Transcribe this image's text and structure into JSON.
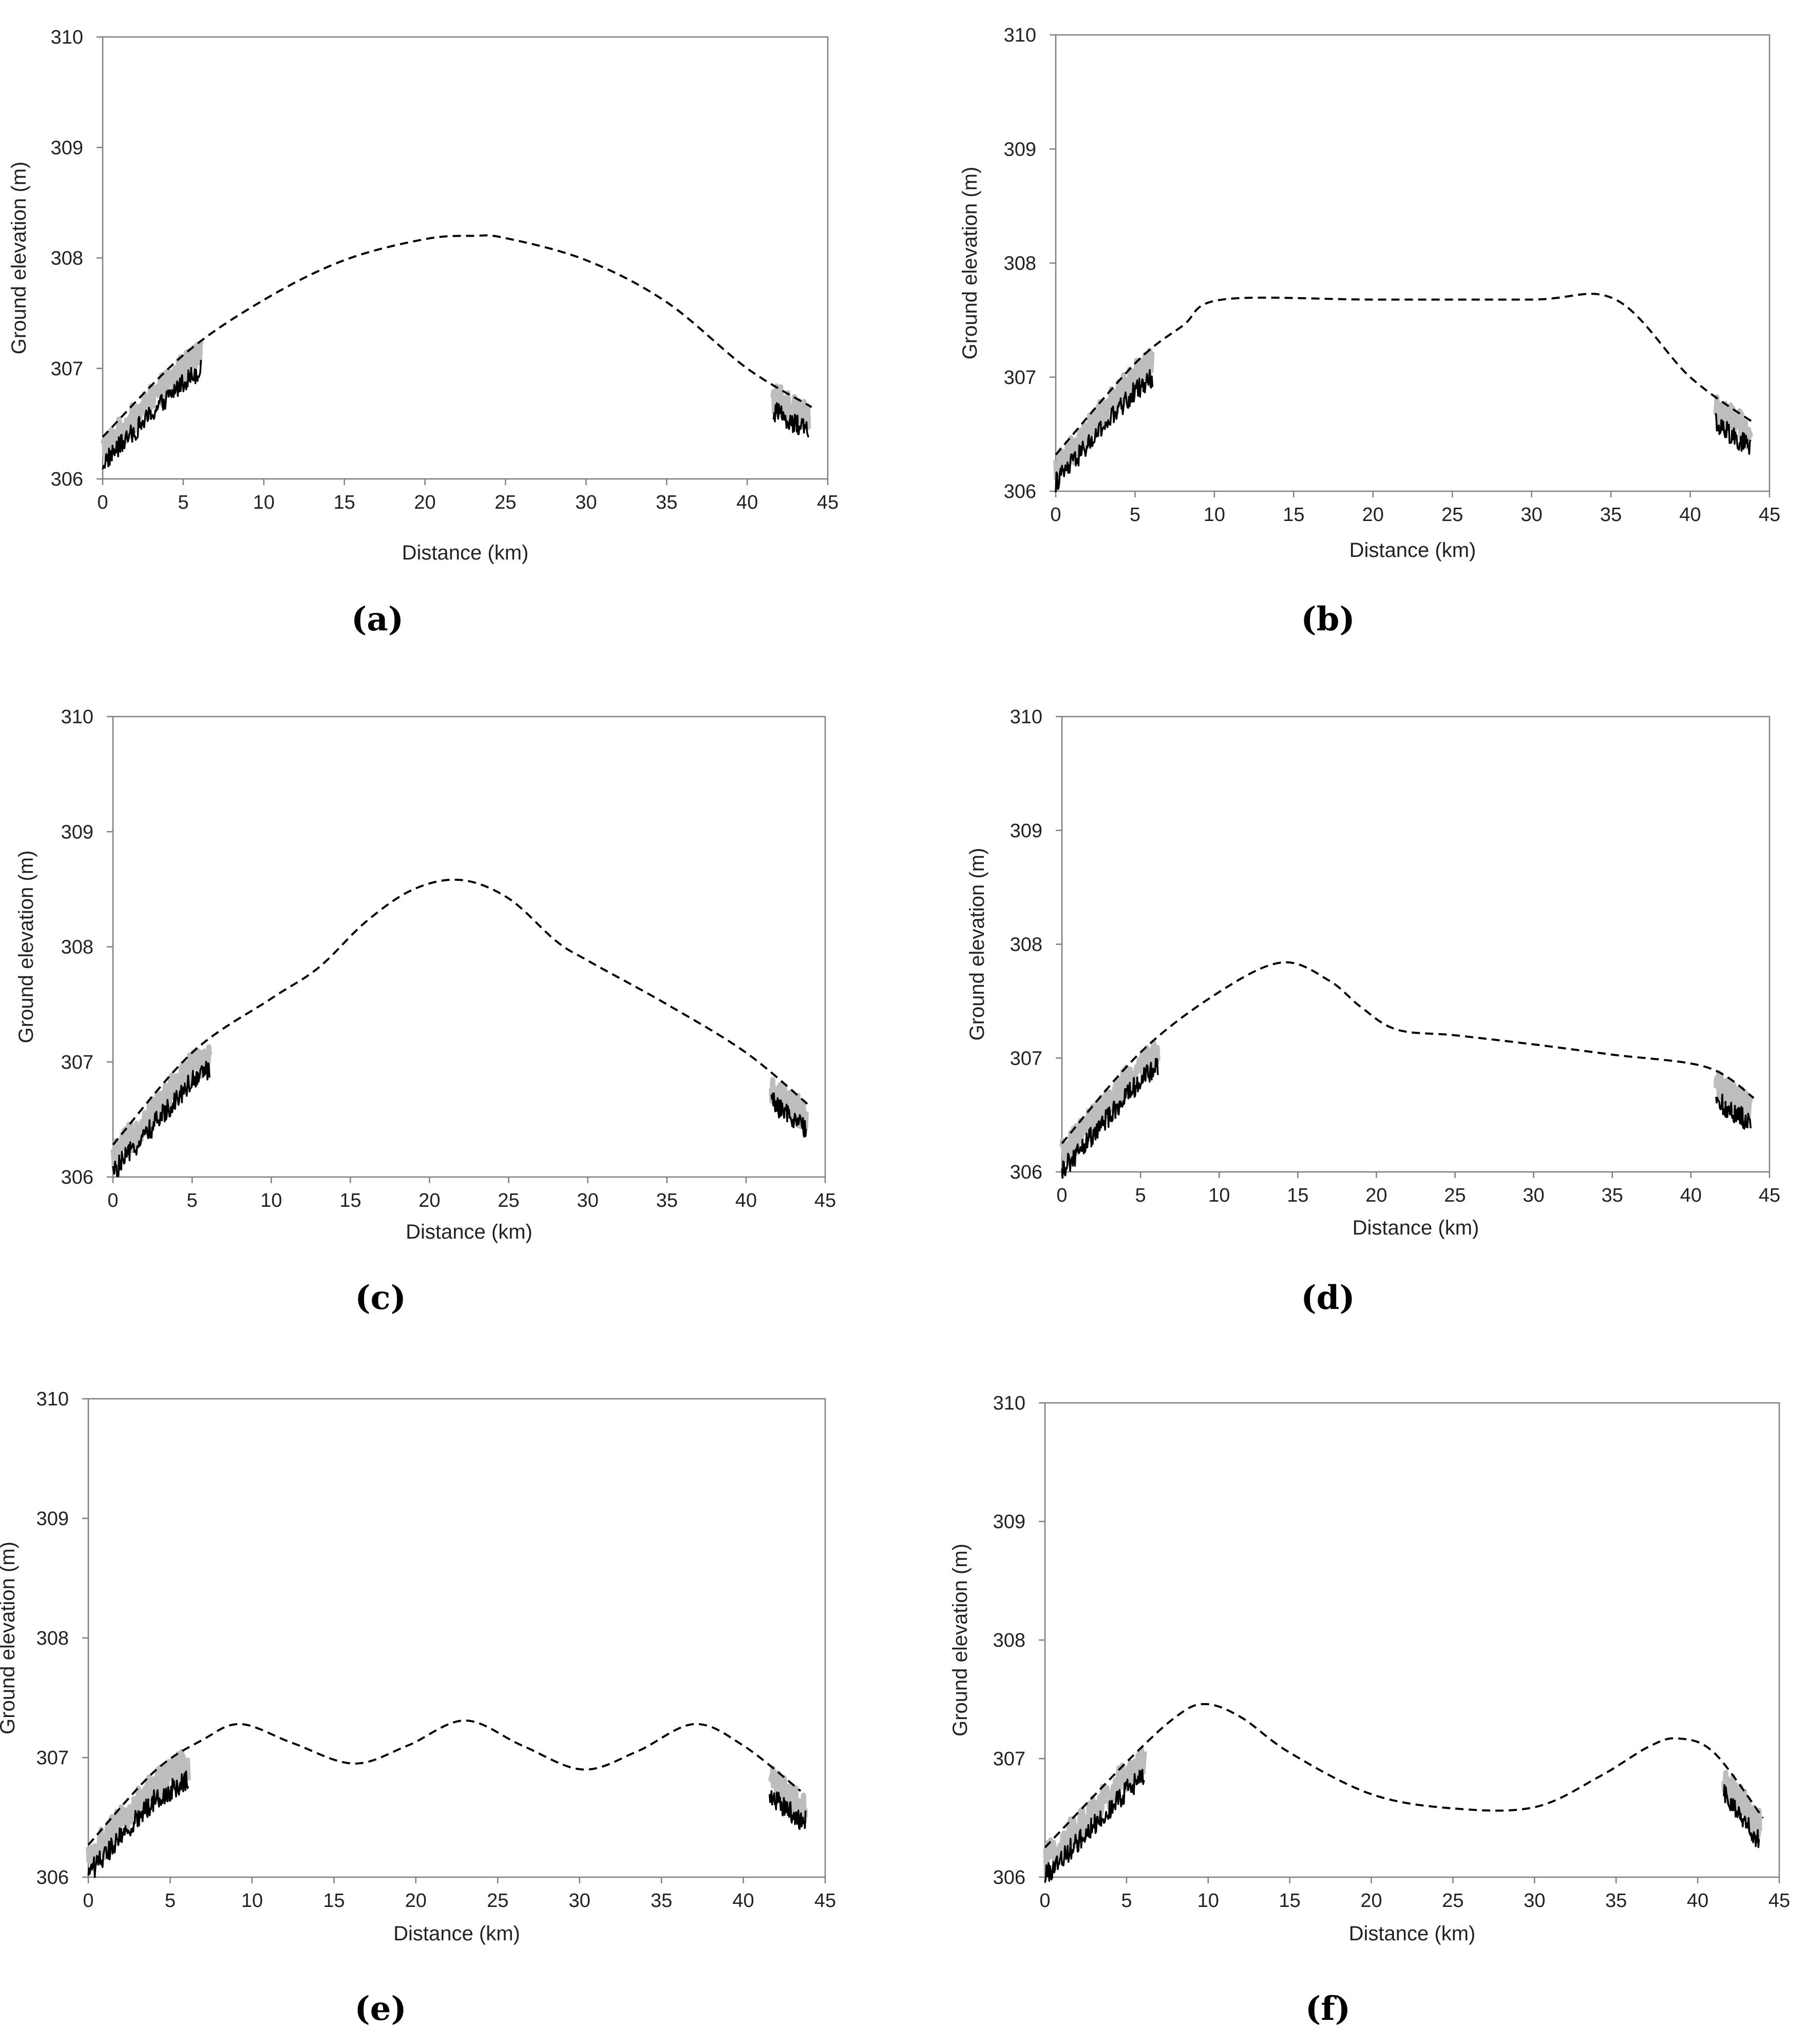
{
  "chart_data": [
    {
      "type": "line",
      "label": "(a)",
      "xlabel": "Distance (km)",
      "ylabel": "Ground elevation (m)",
      "xlim": [
        0,
        45
      ],
      "ylim": [
        306,
        310
      ],
      "xticks": [
        0,
        5,
        10,
        15,
        20,
        25,
        30,
        35,
        40,
        45
      ],
      "yticks": [
        306,
        307,
        308,
        309,
        310
      ],
      "series": [
        {
          "name": "profile-dashed",
          "style": "dashed",
          "x": [
            0,
            5,
            10,
            15,
            20,
            23,
            25,
            30,
            35,
            40,
            44
          ],
          "y": [
            306.38,
            307.12,
            307.62,
            307.98,
            308.17,
            308.2,
            308.18,
            307.98,
            307.6,
            307.0,
            306.65
          ]
        }
      ]
    },
    {
      "type": "line",
      "label": "(b)",
      "xlabel": "Distance (km)",
      "ylabel": "Ground elevation (m)",
      "xlim": [
        0,
        45
      ],
      "ylim": [
        306,
        310
      ],
      "xticks": [
        0,
        5,
        10,
        15,
        20,
        25,
        30,
        35,
        40,
        45
      ],
      "yticks": [
        306,
        307,
        308,
        309,
        310
      ],
      "series": [
        {
          "name": "profile-dashed",
          "style": "dashed",
          "x": [
            0,
            5,
            8,
            10.5,
            20,
            30,
            35.3,
            40,
            44
          ],
          "y": [
            306.32,
            307.12,
            307.45,
            307.68,
            307.68,
            307.68,
            307.68,
            307.0,
            306.6
          ]
        }
      ]
    },
    {
      "type": "line",
      "label": "(c)",
      "xlabel": "Distance (km)",
      "ylabel": "Ground elevation (m)",
      "xlim": [
        0,
        45
      ],
      "ylim": [
        306,
        310
      ],
      "xticks": [
        0,
        5,
        10,
        15,
        20,
        25,
        30,
        35,
        40,
        45
      ],
      "yticks": [
        306,
        307,
        308,
        309,
        310
      ],
      "series": [
        {
          "name": "profile-dashed",
          "style": "dashed",
          "x": [
            0,
            5,
            10,
            13,
            16,
            19,
            22,
            25,
            28,
            30,
            35,
            40,
            44
          ],
          "y": [
            306.28,
            307.08,
            307.55,
            307.82,
            308.22,
            308.5,
            308.58,
            308.42,
            308.05,
            307.88,
            307.5,
            307.08,
            306.62
          ]
        }
      ]
    },
    {
      "type": "line",
      "label": "(d)",
      "xlabel": "Distance (km)",
      "ylabel": "Ground elevation (m)",
      "xlim": [
        0,
        45
      ],
      "ylim": [
        306,
        310
      ],
      "xticks": [
        0,
        5,
        10,
        15,
        20,
        25,
        30,
        35,
        40,
        45
      ],
      "yticks": [
        306,
        307,
        308,
        309,
        310
      ],
      "series": [
        {
          "name": "profile-dashed",
          "style": "dashed",
          "x": [
            0,
            5,
            10,
            14,
            17,
            19,
            21.3,
            25,
            30,
            35,
            41,
            44
          ],
          "y": [
            306.25,
            307.05,
            307.58,
            307.84,
            307.68,
            307.45,
            307.25,
            307.2,
            307.12,
            307.03,
            306.92,
            306.65
          ]
        }
      ]
    },
    {
      "type": "line",
      "label": "(e)",
      "xlabel": "Distance (km)",
      "ylabel": "Ground elevation (m)",
      "xlim": [
        0,
        45
      ],
      "ylim": [
        306,
        310
      ],
      "xticks": [
        0,
        5,
        10,
        15,
        20,
        25,
        30,
        35,
        40,
        45
      ],
      "yticks": [
        306,
        307,
        308,
        309,
        310
      ],
      "series": [
        {
          "name": "profile-dashed",
          "style": "dashed",
          "x": [
            0,
            4,
            7,
            9.3,
            12.5,
            16.2,
            19.5,
            23,
            26.5,
            30.2,
            33.5,
            37,
            40,
            43.5
          ],
          "y": [
            306.27,
            306.88,
            307.15,
            307.28,
            307.12,
            306.95,
            307.1,
            307.31,
            307.1,
            306.9,
            307.05,
            307.28,
            307.1,
            306.72
          ]
        }
      ]
    },
    {
      "type": "line",
      "label": "(f)",
      "xlabel": "Distance (km)",
      "ylabel": "Ground elevation (m)",
      "xlim": [
        0,
        45
      ],
      "ylim": [
        306,
        310
      ],
      "xticks": [
        0,
        5,
        10,
        15,
        20,
        25,
        30,
        35,
        40,
        45
      ],
      "yticks": [
        306,
        307,
        308,
        309,
        310
      ],
      "series": [
        {
          "name": "profile-dashed",
          "style": "dashed",
          "x": [
            0,
            5,
            8,
            9.8,
            12,
            15,
            20,
            25,
            30,
            34,
            37,
            38.8,
            41,
            44
          ],
          "y": [
            306.25,
            306.97,
            307.35,
            307.46,
            307.35,
            307.05,
            306.7,
            306.58,
            306.59,
            306.85,
            307.1,
            307.17,
            307.05,
            306.5
          ]
        }
      ]
    }
  ]
}
